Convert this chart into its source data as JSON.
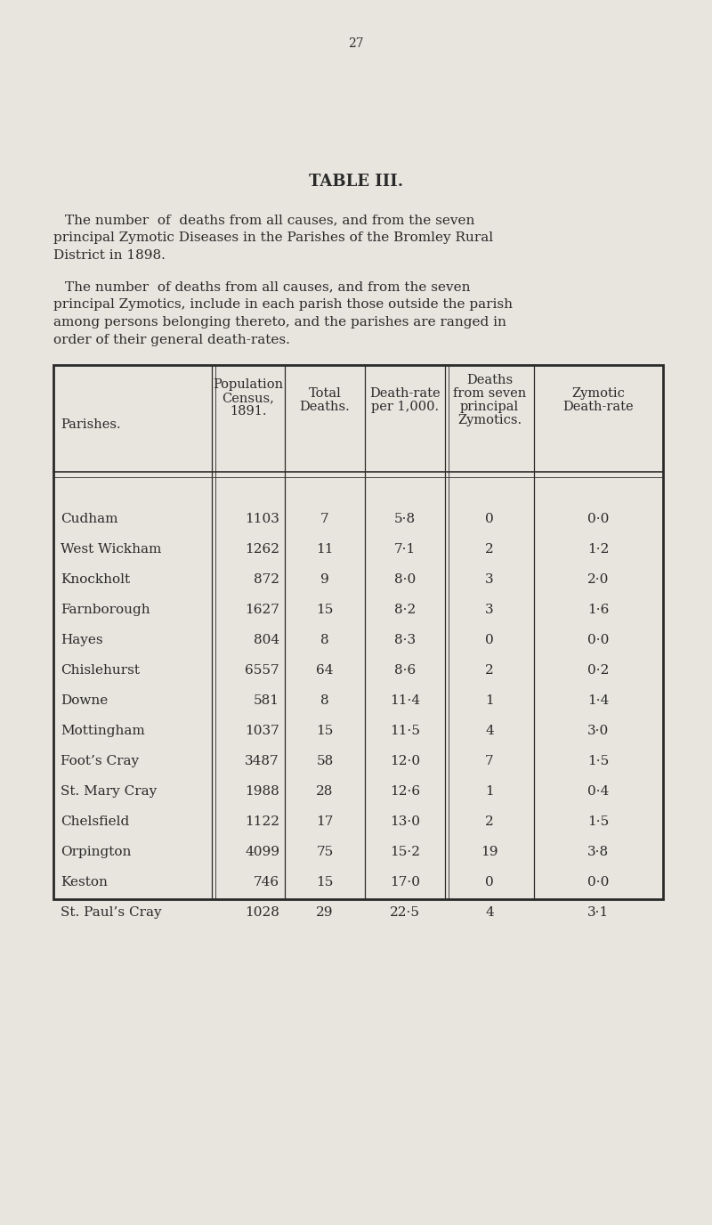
{
  "page_number": "27",
  "table_title": "TABLE III.",
  "para1_indent": "    The number  of  deaths from all causes, and from the seven\nprincipal Zymotic Diseases in the Parishes of the Bromley Rural\nDistrict in 1898.",
  "para2_indent": "    The number  of deaths from all causes, and from the seven\nprincipal Zymotics, include in each parish those outside the parish\namong persons belonging thereto, and the parishes are ranged in\norder of their general death-rates.",
  "col_headers_line1": [
    "Parishes.",
    "Population",
    "Total",
    "Death-rate",
    "Deaths",
    "Zymotic"
  ],
  "col_headers_line2": [
    "",
    "Census,",
    "Deaths.",
    "per 1,000.",
    "from seven",
    "Death-rate"
  ],
  "col_headers_line3": [
    "",
    "1891.",
    "",
    "",
    "principal",
    ""
  ],
  "col_headers_line4": [
    "",
    "",
    "",
    "",
    "Zymotics.",
    ""
  ],
  "rows": [
    [
      "Cudham",
      "1103",
      "7",
      "5·8",
      "0",
      "0·0"
    ],
    [
      "West Wickham",
      "1262",
      "11",
      "7·1",
      "2",
      "1·2"
    ],
    [
      "Knockholt",
      "872",
      "9",
      "8·0",
      "3",
      "2·0"
    ],
    [
      "Farnborough",
      "1627",
      "15",
      "8·2",
      "3",
      "1·6"
    ],
    [
      "Hayes",
      "804",
      "8",
      "8·3",
      "0",
      "0·0"
    ],
    [
      "Chislehurst",
      "6557",
      "64",
      "8·6",
      "2",
      "0·2"
    ],
    [
      "Downe",
      "581",
      "8",
      "11·4",
      "1",
      "1·4"
    ],
    [
      "Mottingham",
      "1037",
      "15",
      "11·5",
      "4",
      "3·0"
    ],
    [
      "Foot’s Cray",
      "3487",
      "58",
      "12·0",
      "7",
      "1·5"
    ],
    [
      "St. Mary Cray",
      "1988",
      "28",
      "12·6",
      "1",
      "0·4"
    ],
    [
      "Chelsfield",
      "1122",
      "17",
      "13·0",
      "2",
      "1·5"
    ],
    [
      "Orpington",
      "4099",
      "75",
      "15·2",
      "19",
      "3·8"
    ],
    [
      "Keston",
      "746",
      "15",
      "17·0",
      "0",
      "0·0"
    ],
    [
      "St. Paul’s Cray",
      "1028",
      "29",
      "22·5",
      "4",
      "3·1"
    ]
  ],
  "bg_color": "#e8e5de",
  "text_color": "#2a2a2a",
  "table_line_color": "#2a2a2a"
}
